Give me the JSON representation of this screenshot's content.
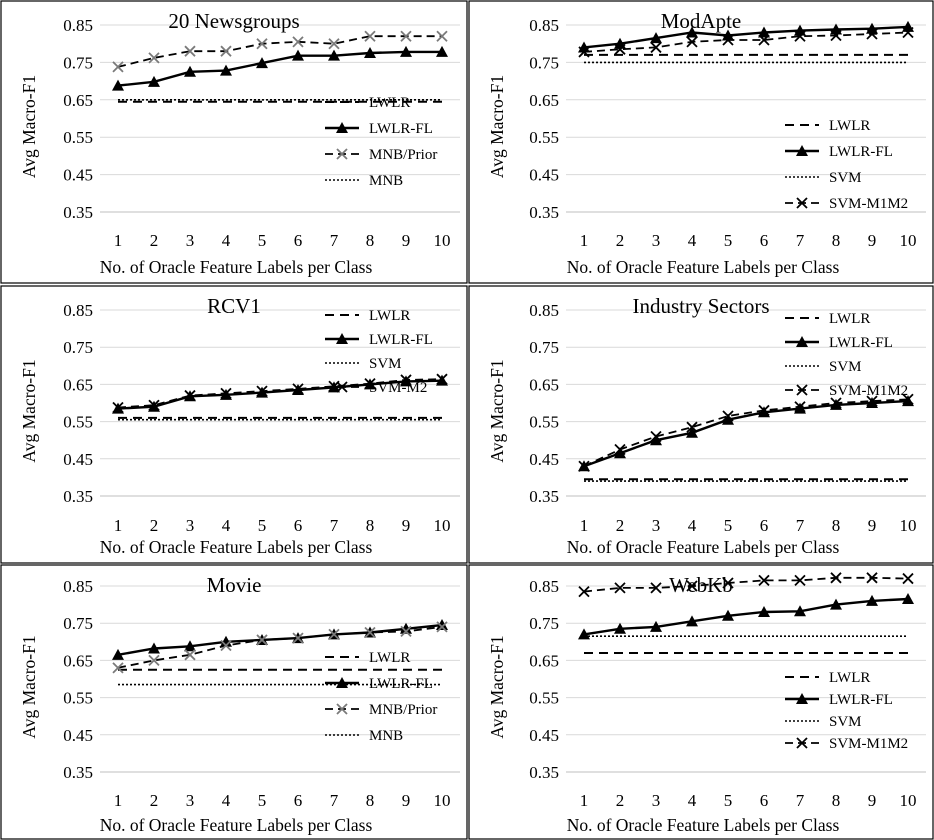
{
  "figure": {
    "xlabel": "No. of Oracle Feature Labels per Class",
    "ylabel": "Avg Macro-F1",
    "x_ticks": [
      "1",
      "2",
      "3",
      "4",
      "5",
      "6",
      "7",
      "8",
      "9",
      "10"
    ],
    "y_ticks": [
      "0.35",
      "0.45",
      "0.55",
      "0.65",
      "0.75",
      "0.85"
    ]
  },
  "chart_data": [
    {
      "type": "line",
      "title": "20 Newsgroups",
      "xlabel": "No. of Oracle Feature Labels per Class",
      "ylabel": "Avg Macro-F1",
      "ylim": [
        0.35,
        0.85
      ],
      "grid": true,
      "legend_position": "bottom-right",
      "x": [
        1,
        2,
        3,
        4,
        5,
        6,
        7,
        8,
        9,
        10
      ],
      "series": [
        {
          "name": "LWLR",
          "style": "dashed",
          "values": [
            0.645,
            0.645,
            0.645,
            0.645,
            0.645,
            0.645,
            0.645,
            0.645,
            0.645,
            0.645
          ]
        },
        {
          "name": "LWLR-FL",
          "style": "solid-triangle",
          "values": [
            0.688,
            0.698,
            0.725,
            0.728,
            0.748,
            0.768,
            0.768,
            0.775,
            0.778,
            0.778
          ]
        },
        {
          "name": "MNB/Prior",
          "style": "dashed-x-gray",
          "values": [
            0.738,
            0.762,
            0.78,
            0.78,
            0.8,
            0.805,
            0.8,
            0.82,
            0.82,
            0.82
          ]
        },
        {
          "name": "MNB",
          "style": "dotted",
          "values": [
            0.65,
            0.65,
            0.65,
            0.65,
            0.65,
            0.65,
            0.65,
            0.65,
            0.65,
            0.65
          ]
        }
      ]
    },
    {
      "type": "line",
      "title": "ModApte",
      "xlabel": "No. of Oracle Feature Labels per Class",
      "ylabel": "Avg Macro-F1",
      "ylim": [
        0.35,
        0.85
      ],
      "grid": true,
      "legend_position": "bottom-right",
      "x": [
        1,
        2,
        3,
        4,
        5,
        6,
        7,
        8,
        9,
        10
      ],
      "series": [
        {
          "name": "LWLR",
          "style": "dashed",
          "values": [
            0.77,
            0.77,
            0.77,
            0.77,
            0.77,
            0.77,
            0.77,
            0.77,
            0.77,
            0.77
          ]
        },
        {
          "name": "LWLR-FL",
          "style": "solid-triangle",
          "values": [
            0.79,
            0.8,
            0.815,
            0.83,
            0.822,
            0.83,
            0.835,
            0.838,
            0.84,
            0.845
          ]
        },
        {
          "name": "SVM",
          "style": "dotted",
          "values": [
            0.75,
            0.75,
            0.75,
            0.75,
            0.75,
            0.75,
            0.75,
            0.75,
            0.75,
            0.75
          ]
        },
        {
          "name": "SVM-M1M2",
          "style": "dashed-x",
          "values": [
            0.778,
            0.785,
            0.79,
            0.805,
            0.81,
            0.81,
            0.82,
            0.822,
            0.826,
            0.83
          ]
        }
      ]
    },
    {
      "type": "line",
      "title": "RCV1",
      "xlabel": "No. of Oracle Feature Labels per Class",
      "ylabel": "Avg Macro-F1",
      "ylim": [
        0.35,
        0.85
      ],
      "grid": true,
      "legend_position": "top-right",
      "x": [
        1,
        2,
        3,
        4,
        5,
        6,
        7,
        8,
        9,
        10
      ],
      "series": [
        {
          "name": "LWLR",
          "style": "dashed",
          "values": [
            0.56,
            0.56,
            0.56,
            0.56,
            0.56,
            0.56,
            0.56,
            0.56,
            0.56,
            0.56
          ]
        },
        {
          "name": "LWLR-FL",
          "style": "solid-triangle",
          "values": [
            0.585,
            0.59,
            0.618,
            0.622,
            0.628,
            0.635,
            0.642,
            0.65,
            0.658,
            0.66
          ]
        },
        {
          "name": "SVM",
          "style": "dotted",
          "values": [
            0.555,
            0.555,
            0.555,
            0.555,
            0.555,
            0.555,
            0.555,
            0.555,
            0.555,
            0.555
          ]
        },
        {
          "name": "SVM-M2",
          "style": "dashed-x",
          "values": [
            0.588,
            0.594,
            0.62,
            0.626,
            0.632,
            0.638,
            0.645,
            0.652,
            0.662,
            0.664
          ]
        }
      ]
    },
    {
      "type": "line",
      "title": "Industry Sectors",
      "xlabel": "No. of Oracle Feature Labels per Class",
      "ylabel": "Avg Macro-F1",
      "ylim": [
        0.35,
        0.85
      ],
      "grid": true,
      "legend_position": "top-right",
      "x": [
        1,
        2,
        3,
        4,
        5,
        6,
        7,
        8,
        9,
        10
      ],
      "series": [
        {
          "name": "LWLR",
          "style": "dashed",
          "values": [
            0.395,
            0.395,
            0.395,
            0.395,
            0.395,
            0.395,
            0.395,
            0.395,
            0.395,
            0.395
          ]
        },
        {
          "name": "LWLR-FL",
          "style": "solid-triangle",
          "values": [
            0.43,
            0.465,
            0.5,
            0.52,
            0.555,
            0.575,
            0.585,
            0.595,
            0.6,
            0.605
          ]
        },
        {
          "name": "SVM",
          "style": "dotted",
          "values": [
            0.39,
            0.39,
            0.39,
            0.39,
            0.39,
            0.39,
            0.39,
            0.39,
            0.39,
            0.39
          ]
        },
        {
          "name": "SVM-M1M2",
          "style": "dashed-x",
          "values": [
            0.43,
            0.475,
            0.51,
            0.535,
            0.565,
            0.58,
            0.59,
            0.6,
            0.605,
            0.61
          ]
        }
      ]
    },
    {
      "type": "line",
      "title": "Movie",
      "xlabel": "No. of Oracle Feature Labels per Class",
      "ylabel": "Avg Macro-F1",
      "ylim": [
        0.35,
        0.85
      ],
      "grid": true,
      "legend_position": "bottom-right",
      "x": [
        1,
        2,
        3,
        4,
        5,
        6,
        7,
        8,
        9,
        10
      ],
      "series": [
        {
          "name": "LWLR",
          "style": "dashed",
          "values": [
            0.625,
            0.625,
            0.625,
            0.625,
            0.625,
            0.625,
            0.625,
            0.625,
            0.625,
            0.625
          ]
        },
        {
          "name": "LWLR-FL",
          "style": "solid-triangle",
          "values": [
            0.665,
            0.682,
            0.688,
            0.7,
            0.705,
            0.71,
            0.72,
            0.725,
            0.735,
            0.745
          ]
        },
        {
          "name": "MNB/Prior",
          "style": "dashed-x-gray",
          "values": [
            0.63,
            0.65,
            0.665,
            0.69,
            0.705,
            0.71,
            0.72,
            0.725,
            0.728,
            0.74
          ]
        },
        {
          "name": "MNB",
          "style": "dotted",
          "values": [
            0.585,
            0.585,
            0.585,
            0.585,
            0.585,
            0.585,
            0.585,
            0.585,
            0.585,
            0.585
          ]
        }
      ]
    },
    {
      "type": "line",
      "title": "WebKb",
      "xlabel": "No. of Oracle Feature Labels per Class",
      "ylabel": "Avg Macro-F1",
      "ylim": [
        0.35,
        0.85
      ],
      "grid": true,
      "legend_position": "bottom-right",
      "x": [
        1,
        2,
        3,
        4,
        5,
        6,
        7,
        8,
        9,
        10
      ],
      "series": [
        {
          "name": "LWLR",
          "style": "dashed",
          "values": [
            0.67,
            0.67,
            0.67,
            0.67,
            0.67,
            0.67,
            0.67,
            0.67,
            0.67,
            0.67
          ]
        },
        {
          "name": "LWLR-FL",
          "style": "solid-triangle",
          "values": [
            0.72,
            0.735,
            0.74,
            0.755,
            0.77,
            0.78,
            0.782,
            0.8,
            0.81,
            0.815
          ]
        },
        {
          "name": "SVM",
          "style": "dotted",
          "values": [
            0.715,
            0.715,
            0.715,
            0.715,
            0.715,
            0.715,
            0.715,
            0.715,
            0.715,
            0.715
          ]
        },
        {
          "name": "SVM-M1M2",
          "style": "dashed-x",
          "values": [
            0.835,
            0.845,
            0.845,
            0.85,
            0.858,
            0.865,
            0.865,
            0.872,
            0.872,
            0.87
          ]
        }
      ]
    }
  ]
}
